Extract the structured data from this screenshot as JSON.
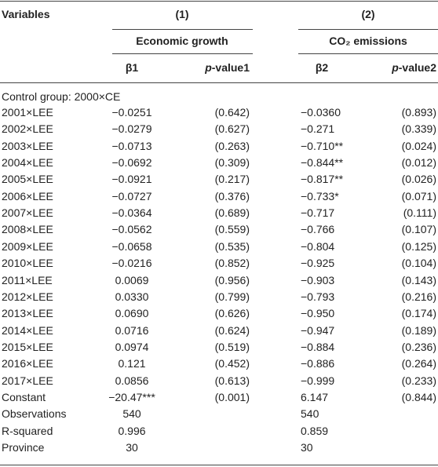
{
  "header": {
    "variables": "Variables",
    "groups": [
      {
        "number": "(1)",
        "title": "Economic growth"
      },
      {
        "number": "(2)",
        "title": "CO₂ emissions"
      }
    ],
    "columns": [
      {
        "label": "β1"
      },
      {
        "italic": "p",
        "label": "-value1"
      },
      {
        "label": "β2"
      },
      {
        "italic": "p",
        "label": "-value2"
      }
    ]
  },
  "control_group": "Control group: 2000×CE",
  "rows": [
    [
      "2001×LEE",
      "−0.0251",
      "(0.642)",
      "−0.0360",
      "(0.893)"
    ],
    [
      "2002×LEE",
      "−0.0279",
      "(0.627)",
      "−0.271",
      "(0.339)"
    ],
    [
      "2003×LEE",
      "−0.0713",
      "(0.263)",
      "−0.710**",
      "(0.024)"
    ],
    [
      "2004×LEE",
      "−0.0692",
      "(0.309)",
      "−0.844**",
      "(0.012)"
    ],
    [
      "2005×LEE",
      "−0.0921",
      "(0.217)",
      "−0.817**",
      "(0.026)"
    ],
    [
      "2006×LEE",
      "−0.0727",
      "(0.376)",
      "−0.733*",
      "(0.071)"
    ],
    [
      "2007×LEE",
      "−0.0364",
      "(0.689)",
      "−0.717",
      "(0.111)"
    ],
    [
      "2008×LEE",
      "−0.0562",
      "(0.559)",
      "−0.766",
      "(0.107)"
    ],
    [
      "2009×LEE",
      "−0.0658",
      "(0.535)",
      "−0.804",
      "(0.125)"
    ],
    [
      "2010×LEE",
      "−0.0216",
      "(0.852)",
      "−0.925",
      "(0.104)"
    ],
    [
      "2011×LEE",
      "0.0069",
      "(0.956)",
      "−0.903",
      "(0.143)"
    ],
    [
      "2012×LEE",
      "0.0330",
      "(0.799)",
      "−0.793",
      "(0.216)"
    ],
    [
      "2013×LEE",
      "0.0690",
      "(0.626)",
      "−0.950",
      "(0.174)"
    ],
    [
      "2014×LEE",
      "0.0716",
      "(0.624)",
      "−0.947",
      "(0.189)"
    ],
    [
      "2015×LEE",
      "0.0974",
      "(0.519)",
      "−0.884",
      "(0.236)"
    ],
    [
      "2016×LEE",
      "0.121",
      "(0.452)",
      "−0.886",
      "(0.264)"
    ],
    [
      "2017×LEE",
      "0.0856",
      "(0.613)",
      "−0.999",
      "(0.233)"
    ],
    [
      "Constant",
      "−20.47***",
      "(0.001)",
      "6.147",
      "(0.844)"
    ]
  ],
  "stats": [
    {
      "label": "Observations",
      "values": [
        "540",
        "540"
      ]
    },
    {
      "label": "R-squared",
      "values": [
        "0.996",
        "0.859"
      ]
    },
    {
      "label": "Province",
      "values": [
        "30",
        "30"
      ]
    }
  ]
}
